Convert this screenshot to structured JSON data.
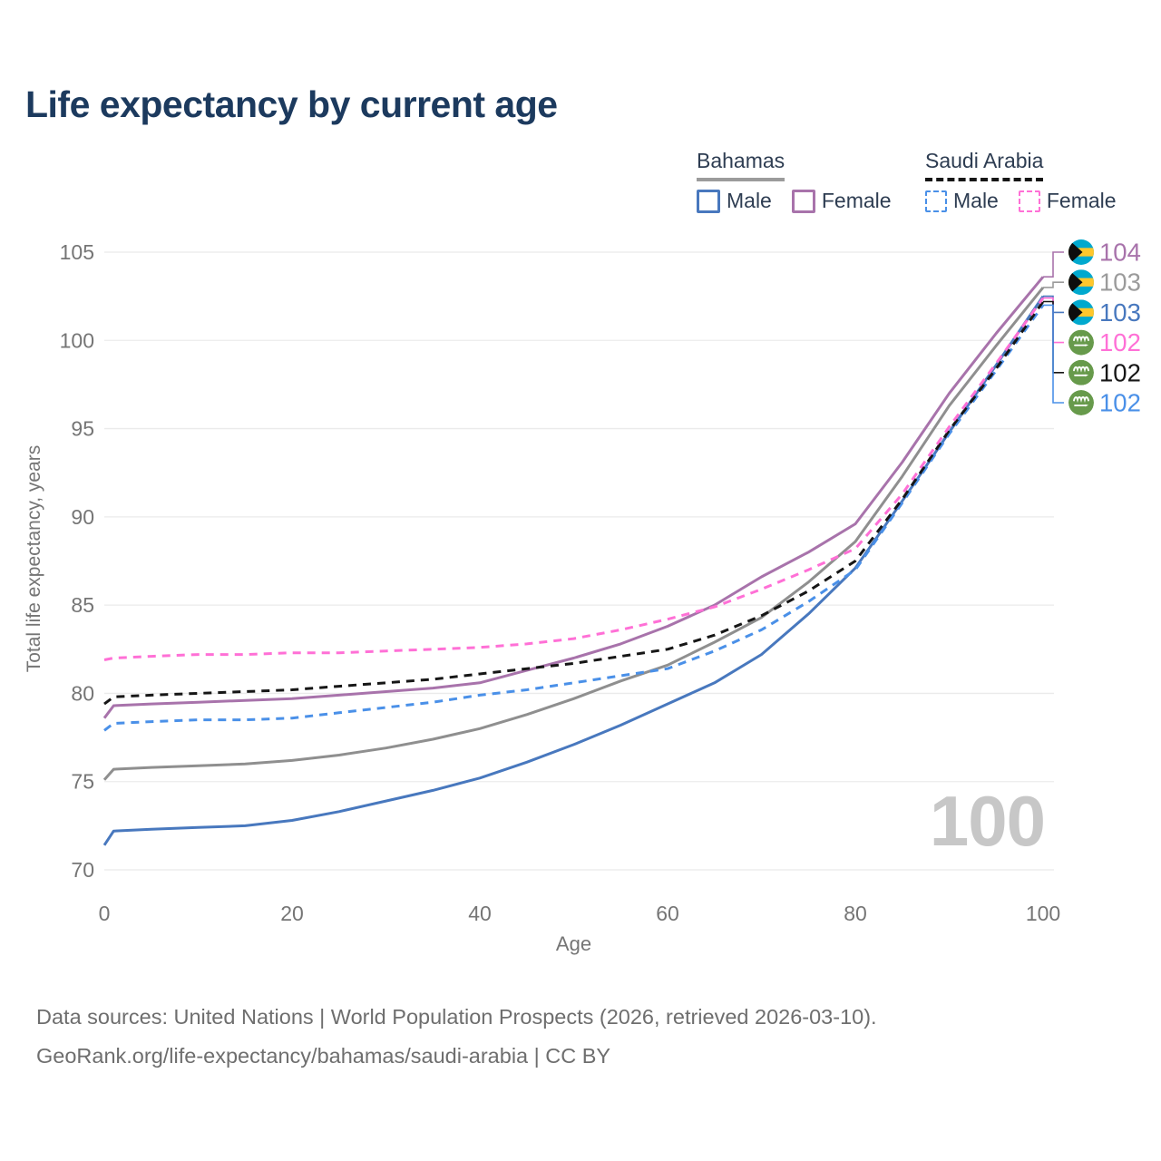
{
  "title": "Life expectancy by current age",
  "legend": {
    "groups": [
      {
        "label": "Bahamas",
        "style": "solid",
        "items": [
          {
            "label": "Male",
            "color_key": "bahamas_male"
          },
          {
            "label": "Female",
            "color_key": "bahamas_female"
          }
        ]
      },
      {
        "label": "Saudi Arabia",
        "style": "dashed",
        "items": [
          {
            "label": "Male",
            "color_key": "saudi_male"
          },
          {
            "label": "Female",
            "color_key": "saudi_female"
          }
        ]
      }
    ]
  },
  "watermark": "100",
  "footer": {
    "line1": "Data sources: United Nations | World Population Prospects (2026, retrieved 2026-03-10).",
    "line2": "GeoRank.org/life-expectancy/bahamas/saudi-arabia | CC BY"
  },
  "colors": {
    "bahamas_male": "#4878be",
    "bahamas_female": "#a873ab",
    "bahamas_total": "#8f8f8f",
    "saudi_male": "#4a90e8",
    "saudi_female": "#ff70d6",
    "saudi_total": "#161616",
    "grid": "#ebebeb",
    "axis_text": "#757575",
    "title_text": "#1c3a5e",
    "watermark_text": "#c7c7c7",
    "bahamas_flag_aqua": "#00a9ce",
    "bahamas_flag_gold": "#ffc72c",
    "bahamas_flag_black": "#0d0d0d",
    "saudi_flag_green": "#679a4b"
  },
  "chart_data": {
    "type": "line",
    "title": "Life expectancy by current age",
    "xlabel": "Age",
    "ylabel": "Total life expectancy, years",
    "xlim": [
      0,
      100
    ],
    "ylim": [
      70,
      105
    ],
    "x_ticks": [
      0,
      20,
      40,
      60,
      80,
      100
    ],
    "y_ticks": [
      70,
      75,
      80,
      85,
      90,
      95,
      100,
      105
    ],
    "grid": "horizontal",
    "legend_position": "top-right",
    "ages": [
      0,
      1,
      5,
      10,
      15,
      20,
      25,
      30,
      35,
      40,
      45,
      50,
      55,
      60,
      65,
      70,
      75,
      80,
      85,
      90,
      95,
      100
    ],
    "series": [
      {
        "id": "bahamas_total",
        "country": "Bahamas",
        "sex": "Both",
        "color": "#8f8f8f",
        "dashed": false,
        "values": [
          75.1,
          75.7,
          75.8,
          75.9,
          76.0,
          76.2,
          76.5,
          76.9,
          77.4,
          78.0,
          78.8,
          79.7,
          80.7,
          81.6,
          82.9,
          84.3,
          86.3,
          88.6,
          92.3,
          96.3,
          99.7,
          103.0
        ]
      },
      {
        "id": "bahamas_male",
        "country": "Bahamas",
        "sex": "Male",
        "color": "#4878be",
        "dashed": false,
        "values": [
          71.4,
          72.2,
          72.3,
          72.4,
          72.5,
          72.8,
          73.3,
          73.9,
          74.5,
          75.2,
          76.1,
          77.1,
          78.2,
          79.4,
          80.6,
          82.2,
          84.5,
          87.1,
          90.9,
          94.8,
          98.6,
          102.5
        ]
      },
      {
        "id": "bahamas_female",
        "country": "Bahamas",
        "sex": "Female",
        "color": "#a873ab",
        "dashed": false,
        "values": [
          78.6,
          79.3,
          79.4,
          79.5,
          79.6,
          79.7,
          79.9,
          80.1,
          80.3,
          80.6,
          81.3,
          82.0,
          82.8,
          83.8,
          85.0,
          86.6,
          88.0,
          89.6,
          93.1,
          97.0,
          100.4,
          103.6
        ]
      },
      {
        "id": "saudi_male",
        "country": "Saudi Arabia",
        "sex": "Male",
        "color": "#4a90e8",
        "dashed": true,
        "values": [
          77.9,
          78.3,
          78.4,
          78.5,
          78.5,
          78.6,
          78.9,
          79.2,
          79.5,
          79.9,
          80.2,
          80.6,
          81.0,
          81.4,
          82.4,
          83.6,
          85.2,
          87.0,
          90.8,
          94.7,
          98.3,
          102.0
        ]
      },
      {
        "id": "saudi_total",
        "country": "Saudi Arabia",
        "sex": "Both",
        "color": "#161616",
        "dashed": true,
        "values": [
          79.4,
          79.8,
          79.9,
          80.0,
          80.1,
          80.2,
          80.4,
          80.6,
          80.8,
          81.1,
          81.4,
          81.7,
          82.1,
          82.5,
          83.3,
          84.4,
          85.8,
          87.5,
          91.0,
          94.9,
          98.4,
          102.2
        ]
      },
      {
        "id": "saudi_female",
        "country": "Saudi Arabia",
        "sex": "Female",
        "color": "#ff70d6",
        "dashed": true,
        "values": [
          81.9,
          82.0,
          82.1,
          82.2,
          82.2,
          82.3,
          82.3,
          82.4,
          82.5,
          82.6,
          82.8,
          83.1,
          83.6,
          84.2,
          84.9,
          85.9,
          87.0,
          88.2,
          91.3,
          95.1,
          98.7,
          102.4
        ]
      }
    ],
    "end_labels": [
      {
        "series": "bahamas_female",
        "flag": "bahamas",
        "value": "104",
        "color": "#a873ab"
      },
      {
        "series": "bahamas_total",
        "flag": "bahamas",
        "value": "103",
        "color": "#9b9b9b"
      },
      {
        "series": "bahamas_male",
        "flag": "bahamas",
        "value": "103",
        "color": "#4878be"
      },
      {
        "series": "saudi_female",
        "flag": "saudi",
        "value": "102",
        "color": "#ff70d6"
      },
      {
        "series": "saudi_total",
        "flag": "saudi",
        "value": "102",
        "color": "#161616"
      },
      {
        "series": "saudi_male",
        "flag": "saudi",
        "value": "102",
        "color": "#4a90e8"
      }
    ]
  }
}
